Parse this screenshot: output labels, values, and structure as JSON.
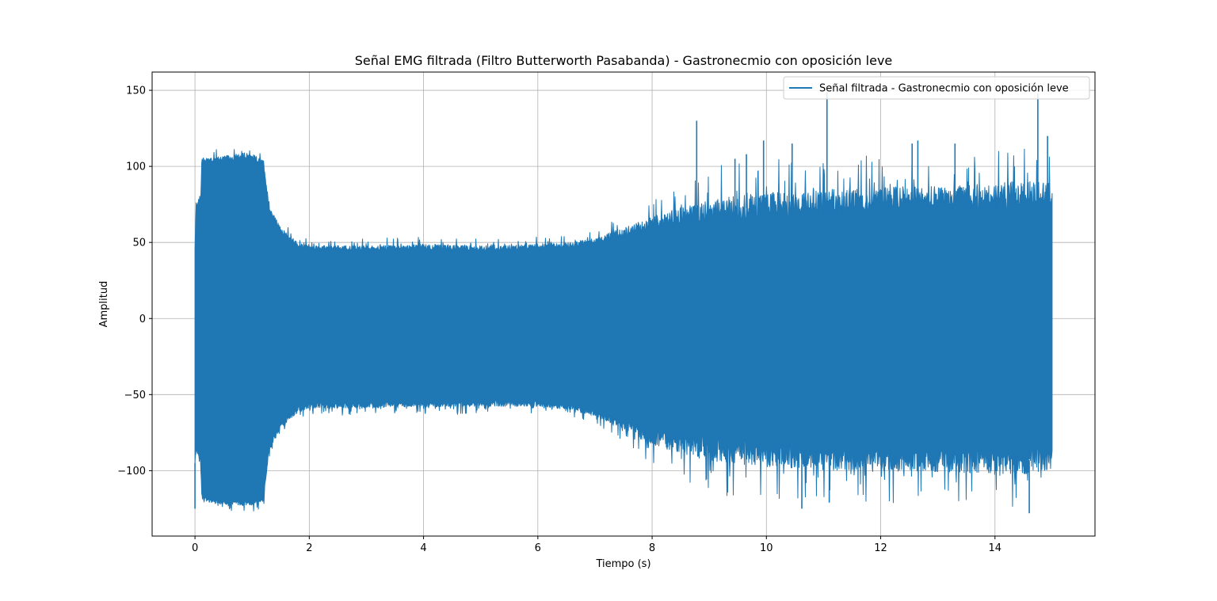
{
  "chart_data": {
    "type": "line",
    "title": "Señal EMG filtrada (Filtro Butterworth Pasabanda) - Gastronecmio con oposición leve",
    "xlabel": "Tiempo (s)",
    "ylabel": "Amplitud",
    "xlim": [
      -0.75,
      15.75
    ],
    "ylim": [
      -143,
      162
    ],
    "xticks": [
      0,
      2,
      4,
      6,
      8,
      10,
      12,
      14
    ],
    "xtick_labels": [
      "0",
      "2",
      "4",
      "6",
      "8",
      "10",
      "12",
      "14"
    ],
    "yticks": [
      -100,
      -50,
      0,
      50,
      100,
      150
    ],
    "ytick_labels": [
      "−100",
      "−50",
      "0",
      "50",
      "100",
      "150"
    ],
    "grid": true,
    "legend_position": "top-right",
    "series": [
      {
        "name": "Señal filtrada - Gastronecmio con oposición leve",
        "color": "#1f77b4",
        "envelope": {
          "x": [
            0.0,
            0.02,
            0.1,
            0.12,
            0.5,
            1.0,
            1.2,
            1.3,
            1.5,
            1.8,
            2.0,
            3.0,
            4.0,
            5.0,
            6.0,
            6.5,
            7.0,
            7.5,
            8.0,
            9.0,
            10.0,
            11.0,
            12.0,
            13.0,
            14.0,
            14.5,
            15.0
          ],
          "upper": [
            45,
            75,
            78,
            104,
            105,
            106,
            102,
            72,
            58,
            48,
            46,
            46,
            47,
            46,
            47,
            48,
            51,
            56,
            62,
            70,
            74,
            76,
            78,
            78,
            80,
            82,
            80
          ],
          "lower": [
            -95,
            -85,
            -92,
            -118,
            -121,
            -121,
            -118,
            -85,
            -70,
            -60,
            -57,
            -57,
            -56,
            -56,
            -56,
            -58,
            -62,
            -70,
            -78,
            -85,
            -89,
            -91,
            -92,
            -92,
            -93,
            -94,
            -90
          ]
        },
        "peaks": [
          {
            "x": 0.0,
            "y": -125
          },
          {
            "x": 8.78,
            "y": 130
          },
          {
            "x": 9.45,
            "y": 105
          },
          {
            "x": 9.65,
            "y": 108
          },
          {
            "x": 9.95,
            "y": 117
          },
          {
            "x": 10.45,
            "y": 115
          },
          {
            "x": 10.62,
            "y": -125
          },
          {
            "x": 11.06,
            "y": 149
          },
          {
            "x": 11.1,
            "y": -121
          },
          {
            "x": 12.55,
            "y": 115
          },
          {
            "x": 12.65,
            "y": 117
          },
          {
            "x": 13.3,
            "y": 115
          },
          {
            "x": 14.75,
            "y": 148
          },
          {
            "x": 14.6,
            "y": -128
          },
          {
            "x": 14.92,
            "y": 120
          }
        ]
      }
    ]
  }
}
